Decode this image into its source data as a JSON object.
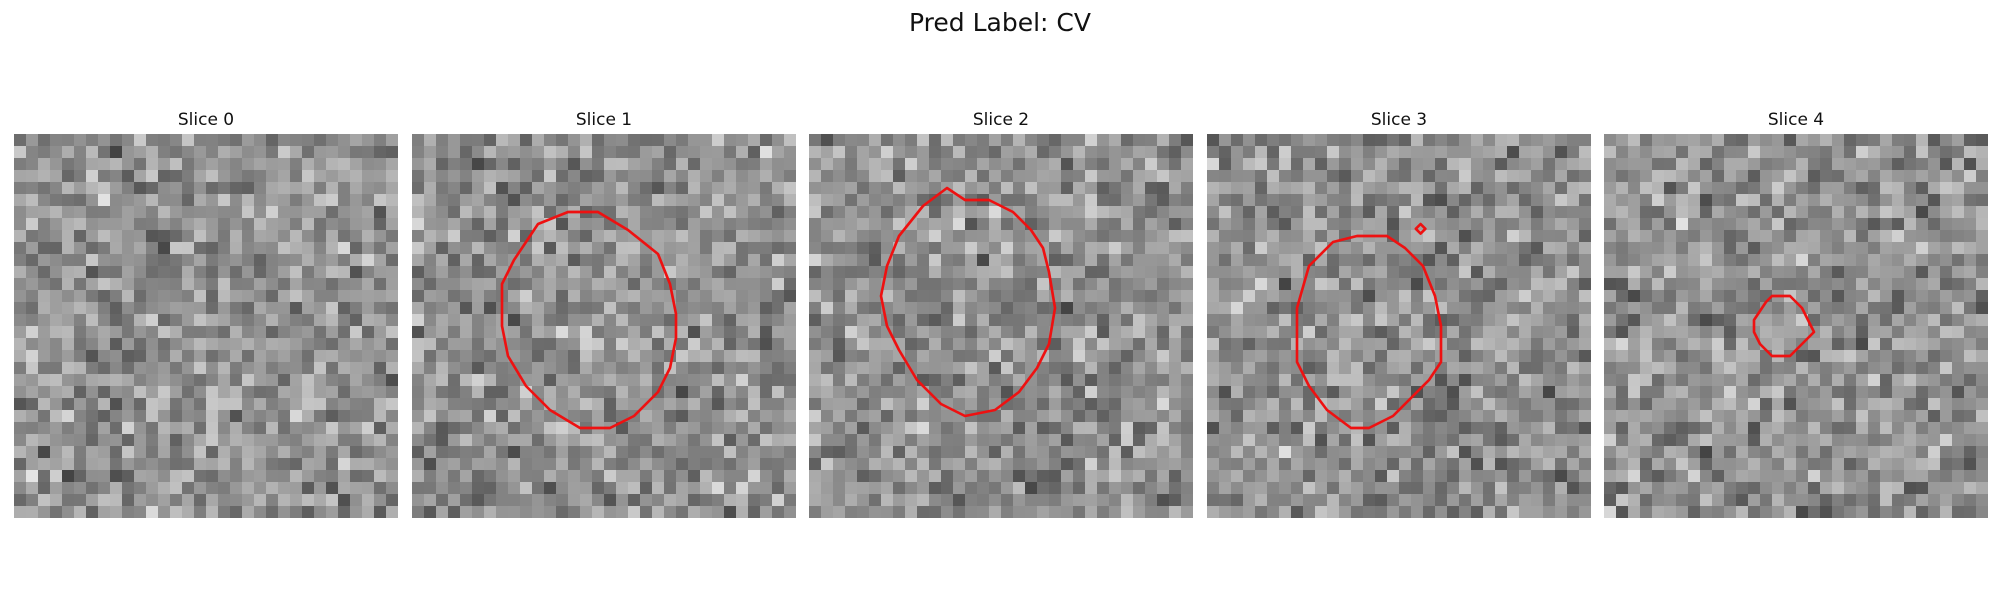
{
  "figure": {
    "title": "Pred Label: CV"
  },
  "panels": [
    {
      "title": "Slice 0",
      "seed": 11,
      "contours": []
    },
    {
      "title": "Slice 1",
      "seed": 23,
      "contours": [
        [
          [
            10.5,
            7.5
          ],
          [
            13,
            6.5
          ],
          [
            15.5,
            6.5
          ],
          [
            18,
            8
          ],
          [
            20.5,
            10
          ],
          [
            21.5,
            12.5
          ],
          [
            22,
            15
          ],
          [
            22,
            17
          ],
          [
            21.5,
            19.5
          ],
          [
            20.5,
            21.5
          ],
          [
            18.5,
            23.5
          ],
          [
            16.5,
            24.5
          ],
          [
            14,
            24.5
          ],
          [
            11.5,
            23
          ],
          [
            9.5,
            21
          ],
          [
            8,
            18.5
          ],
          [
            7.5,
            16
          ],
          [
            7.5,
            12.5
          ],
          [
            8.5,
            10.5
          ]
        ]
      ]
    },
    {
      "title": "Slice 2",
      "seed": 37,
      "contours": [
        [
          [
            7.5,
            8.5
          ],
          [
            9.5,
            6
          ],
          [
            11.5,
            4.5
          ],
          [
            13,
            5.5
          ],
          [
            15,
            5.5
          ],
          [
            17,
            6.5
          ],
          [
            18.5,
            8
          ],
          [
            19.5,
            9.5
          ],
          [
            20,
            11.5
          ],
          [
            20.5,
            14.5
          ],
          [
            20,
            17.5
          ],
          [
            19,
            19.5
          ],
          [
            17.5,
            21.5
          ],
          [
            15.5,
            23
          ],
          [
            13,
            23.5
          ],
          [
            11,
            22.5
          ],
          [
            9,
            20.5
          ],
          [
            7.5,
            18
          ],
          [
            6.5,
            16
          ],
          [
            6,
            13.5
          ],
          [
            6.5,
            11
          ]
        ]
      ]
    },
    {
      "title": "Slice 3",
      "seed": 53,
      "contours": [
        [
          [
            10.5,
            9
          ],
          [
            12.5,
            8.5
          ],
          [
            15,
            8.5
          ],
          [
            16.5,
            9.5
          ],
          [
            18,
            11
          ],
          [
            19,
            13.5
          ],
          [
            19.5,
            16
          ],
          [
            19.5,
            19
          ],
          [
            18.5,
            20.5
          ],
          [
            17,
            22
          ],
          [
            15.5,
            23.5
          ],
          [
            13.5,
            24.5
          ],
          [
            12,
            24.5
          ],
          [
            10,
            23
          ],
          [
            8.5,
            21
          ],
          [
            7.5,
            19
          ],
          [
            7.5,
            14.5
          ],
          [
            8.5,
            11
          ]
        ],
        [
          [
            17.8,
            7.5
          ],
          [
            18.2,
            7.9
          ],
          [
            17.8,
            8.3
          ],
          [
            17.4,
            7.9
          ]
        ]
      ]
    },
    {
      "title": "Slice 4",
      "seed": 71,
      "contours": [
        [
          [
            14,
            13.5
          ],
          [
            15.5,
            13.5
          ],
          [
            16.5,
            14.5
          ],
          [
            17,
            15.5
          ],
          [
            17.5,
            16.5
          ],
          [
            16.5,
            17.5
          ],
          [
            15.5,
            18.5
          ],
          [
            14,
            18.5
          ],
          [
            13,
            17.5
          ],
          [
            12.5,
            16.5
          ],
          [
            12.5,
            15.5
          ],
          [
            13.5,
            14
          ]
        ]
      ]
    }
  ],
  "colors": {
    "contour": "#ee1111"
  }
}
